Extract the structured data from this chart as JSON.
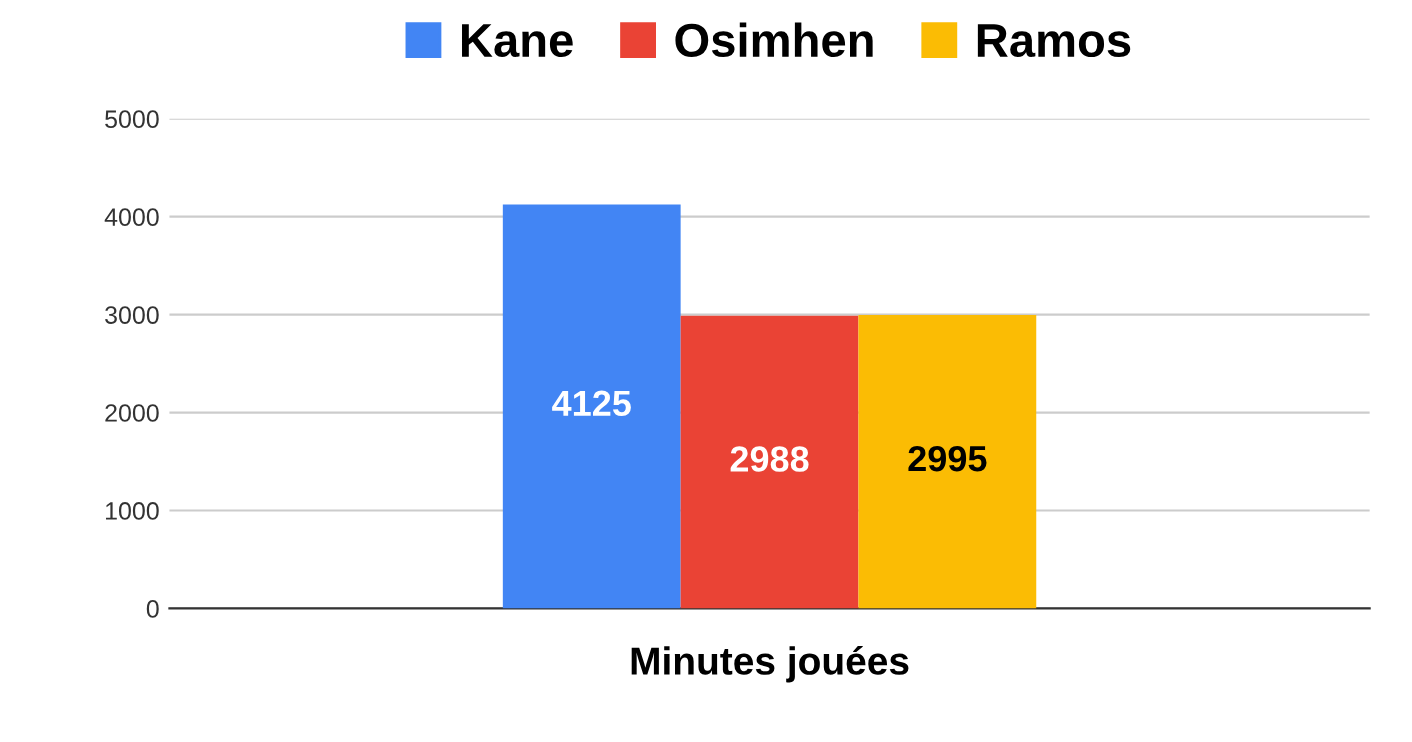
{
  "chart_data": {
    "type": "bar",
    "xlabel": "Minutes jouées",
    "categories": [
      null
    ],
    "series": [
      {
        "name": "Kane",
        "color": "#4285f4",
        "values": [
          4125
        ]
      },
      {
        "name": "Osimhen",
        "color": "#ea4335",
        "values": [
          2988
        ]
      },
      {
        "name": "Ramos",
        "color": "#fbbc04",
        "values": [
          2995
        ]
      }
    ],
    "ylim": [
      0,
      5000
    ],
    "yticks": [
      0,
      1000,
      2000,
      3000,
      4000,
      5000
    ],
    "grid": "y",
    "legend": "top",
    "data_labels": true
  }
}
